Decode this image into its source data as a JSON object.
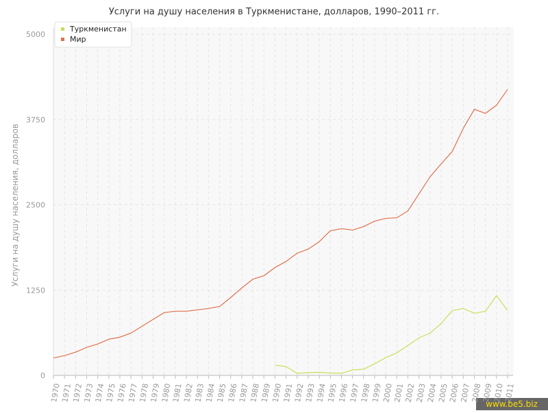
{
  "chart_data": {
    "type": "line",
    "title": "Услуги на душу населения в Туркменистане, долларов, 1990–2011 гг.",
    "y_label": "Услуги на душу населения, долларов",
    "watermark": "www.be5.biz",
    "categories": [
      "1970",
      "1971",
      "1972",
      "1973",
      "1974",
      "1975",
      "1976",
      "1977",
      "1978",
      "1979",
      "1980",
      "1981",
      "1982",
      "1983",
      "1984",
      "1985",
      "1986",
      "1987",
      "1988",
      "1989",
      "1990",
      "1991",
      "1992",
      "1993",
      "1994",
      "1995",
      "1996",
      "1997",
      "1998",
      "1999",
      "2000",
      "2001",
      "2002",
      "2003",
      "2004",
      "2005",
      "2006",
      "2007",
      "2008",
      "2009",
      "2010",
      "2011"
    ],
    "series": [
      {
        "name": "Туркменистан",
        "color": "#c5e05a",
        "values": [
          null,
          null,
          null,
          null,
          null,
          null,
          null,
          null,
          null,
          null,
          null,
          null,
          null,
          null,
          null,
          null,
          null,
          null,
          null,
          null,
          150,
          130,
          30,
          40,
          45,
          35,
          30,
          80,
          90,
          170,
          260,
          330,
          440,
          550,
          620,
          760,
          950,
          980,
          910,
          940,
          1170,
          950
        ]
      },
      {
        "name": "Мир",
        "color": "#e0704a",
        "values": [
          255,
          290,
          340,
          410,
          460,
          530,
          560,
          620,
          720,
          820,
          920,
          940,
          940,
          960,
          980,
          1010,
          1140,
          1280,
          1410,
          1460,
          1580,
          1670,
          1790,
          1850,
          1960,
          2120,
          2150,
          2130,
          2180,
          2260,
          2300,
          2310,
          2410,
          2660,
          2910,
          3100,
          3280,
          3620,
          3900,
          3840,
          3960,
          4190
        ]
      }
    ],
    "ylim": [
      0,
      5000
    ],
    "yticks": [
      0,
      1250,
      2500,
      3750,
      5000
    ],
    "grid": true,
    "legend": "top-left"
  }
}
